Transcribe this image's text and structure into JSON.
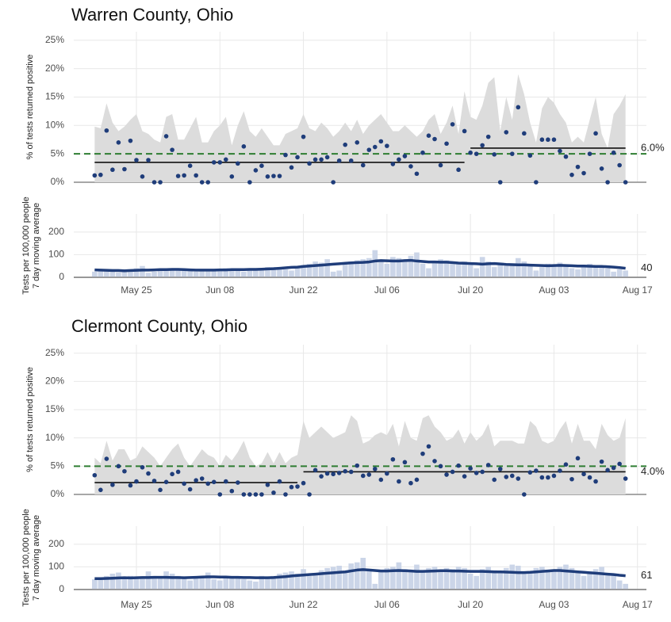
{
  "chart_data": [
    {
      "type": "scatter",
      "title": "Warren County, Ohio",
      "y_label": "% of tests returned positive",
      "x": [
        0,
        1,
        2,
        3,
        4,
        5,
        6,
        7,
        8,
        9,
        10,
        11,
        12,
        13,
        14,
        15,
        16,
        17,
        18,
        19,
        20,
        21,
        22,
        23,
        24,
        25,
        26,
        27,
        28,
        29,
        30,
        31,
        32,
        33,
        34,
        35,
        36,
        37,
        38,
        39,
        40,
        41,
        42,
        43,
        44,
        45,
        46,
        47,
        48,
        49,
        50,
        51,
        52,
        53,
        54,
        55,
        56,
        57,
        58,
        59,
        60,
        61,
        62,
        63,
        64,
        65,
        66,
        67,
        68,
        69,
        70,
        71,
        72,
        73,
        74,
        75,
        76,
        77,
        78,
        79,
        80,
        81,
        82,
        83,
        84,
        85,
        86,
        87,
        88,
        89
      ],
      "values": [
        1.2,
        1.3,
        9.1,
        2.2,
        7.0,
        2.3,
        7.3,
        3.9,
        1.0,
        3.9,
        0,
        0,
        8.1,
        5.7,
        1.1,
        1.2,
        2.9,
        1.2,
        0,
        0,
        3.5,
        3.5,
        4.0,
        1.0,
        3.3,
        6.3,
        0,
        2.1,
        2.9,
        1.0,
        1.1,
        1.1,
        4.8,
        2.6,
        4.4,
        8.0,
        3.3,
        4.0,
        4.0,
        4.4,
        0,
        3.8,
        6.6,
        3.8,
        7.0,
        3.0,
        5.7,
        6.2,
        7.2,
        6.4,
        3.2,
        4.0,
        4.6,
        2.8,
        1.5,
        5.2,
        8.2,
        7.6,
        3.0,
        6.8,
        10.2,
        2.2,
        9.0,
        5.2,
        5.0,
        6.5,
        8.0,
        4.9,
        0,
        8.8,
        5.0,
        13.2,
        8.6,
        4.7,
        0,
        7.5,
        7.5,
        7.5,
        5.5,
        4.5,
        1.3,
        2.7,
        1.6,
        5.0,
        8.6,
        2.4,
        0,
        5.2,
        3.0,
        0
      ],
      "band_upper": [
        9.8,
        9.5,
        13.9,
        10.5,
        9.0,
        9.8,
        11.0,
        12.0,
        9.0,
        8.5,
        7.5,
        7.0,
        11.5,
        12.0,
        7.5,
        7.5,
        9.5,
        11.5,
        7.0,
        7.0,
        9.0,
        10.0,
        11.5,
        6.5,
        10.0,
        12.5,
        9.0,
        8.0,
        9.5,
        8.0,
        6.5,
        6.5,
        8.5,
        9.0,
        9.5,
        12.0,
        9.5,
        9.0,
        10.5,
        9.5,
        8.0,
        9.0,
        10.5,
        9.0,
        11.0,
        8.5,
        10.0,
        11.0,
        12.0,
        10.5,
        9.0,
        9.0,
        10.0,
        9.0,
        8.0,
        9.0,
        11.0,
        12.0,
        8.5,
        10.5,
        13.5,
        8.5,
        16.0,
        11.5,
        11.0,
        13.5,
        17.5,
        18.5,
        9.0,
        15.0,
        11.0,
        19.0,
        15.5,
        10.5,
        7.0,
        13.0,
        15.0,
        14.0,
        12.0,
        10.5,
        7.0,
        8.0,
        7.0,
        11.0,
        15.0,
        8.5,
        6.0,
        12.0,
        13.5,
        15.5
      ],
      "segments": [
        {
          "x": [
            0,
            62
          ],
          "value": 3.5
        },
        {
          "x": [
            63,
            89
          ],
          "value": 6.0,
          "value_label": "6.0%"
        }
      ],
      "threshold": 5,
      "color": "#1f3d7a",
      "band_color": "#dcdcdc",
      "threshold_color": "#2e7d32",
      "xlim": [
        -3.5,
        92.5
      ],
      "ylim": [
        0,
        26.5
      ],
      "yticks": [
        {
          "value": 0,
          "label": "0%"
        },
        {
          "value": 5,
          "label": "5%"
        },
        {
          "value": 10,
          "label": "10%"
        },
        {
          "value": 15,
          "label": "15%"
        },
        {
          "value": 20,
          "label": "20%"
        },
        {
          "value": 25,
          "label": "25%"
        }
      ]
    },
    {
      "type": "bar",
      "y_label": [
        "Tests per 100,000 people",
        "7 day moving average"
      ],
      "x": [
        0,
        1,
        2,
        3,
        4,
        5,
        6,
        7,
        8,
        9,
        10,
        11,
        12,
        13,
        14,
        15,
        16,
        17,
        18,
        19,
        20,
        21,
        22,
        23,
        24,
        25,
        26,
        27,
        28,
        29,
        30,
        31,
        32,
        33,
        34,
        35,
        36,
        37,
        38,
        39,
        40,
        41,
        42,
        43,
        44,
        45,
        46,
        47,
        48,
        49,
        50,
        51,
        52,
        53,
        54,
        55,
        56,
        57,
        58,
        59,
        60,
        61,
        62,
        63,
        64,
        65,
        66,
        67,
        68,
        69,
        70,
        71,
        72,
        73,
        74,
        75,
        76,
        77,
        78,
        79,
        80,
        81,
        82,
        83,
        84,
        85,
        86,
        87,
        88,
        89
      ],
      "values": [
        25,
        30,
        35,
        28,
        22,
        30,
        35,
        40,
        50,
        20,
        25,
        30,
        35,
        38,
        40,
        30,
        28,
        25,
        30,
        35,
        30,
        35,
        40,
        35,
        30,
        25,
        30,
        35,
        40,
        45,
        45,
        40,
        35,
        30,
        45,
        55,
        60,
        70,
        65,
        80,
        25,
        30,
        60,
        70,
        75,
        80,
        85,
        120,
        70,
        60,
        90,
        85,
        70,
        95,
        110,
        60,
        40,
        70,
        80,
        75,
        60,
        65,
        70,
        55,
        40,
        90,
        70,
        45,
        60,
        50,
        60,
        85,
        70,
        50,
        30,
        45,
        60,
        50,
        65,
        55,
        40,
        35,
        55,
        60,
        50,
        45,
        40,
        25,
        35,
        30
      ],
      "moving_average": [
        33,
        32,
        31,
        30,
        30,
        29,
        30,
        31,
        32,
        32,
        33,
        34,
        34,
        35,
        35,
        34,
        33,
        32,
        32,
        32,
        32,
        33,
        33,
        34,
        34,
        34,
        35,
        35,
        36,
        37,
        38,
        40,
        42,
        44,
        45,
        48,
        50,
        52,
        54,
        56,
        58,
        60,
        62,
        64,
        65,
        66,
        68,
        72,
        74,
        73,
        72,
        72,
        74,
        75,
        72,
        70,
        68,
        68,
        67,
        67,
        65,
        63,
        62,
        61,
        60,
        58,
        60,
        61,
        59,
        57,
        56,
        55,
        55,
        54,
        53,
        52,
        51,
        52,
        53,
        52,
        51,
        50,
        50,
        49,
        48,
        48,
        47,
        45,
        43,
        40
      ],
      "color": "#cbd5e8",
      "line_color": "#1f3d7a",
      "xlim": [
        -3.5,
        92.5
      ],
      "ylim": [
        0,
        280
      ],
      "yticks": [
        0,
        100,
        200
      ],
      "xticks": [
        {
          "value": 7,
          "label": "May 25"
        },
        {
          "value": 21,
          "label": "Jun 08"
        },
        {
          "value": 35,
          "label": "Jun 22"
        },
        {
          "value": 49,
          "label": "Jul 06"
        },
        {
          "value": 63,
          "label": "Jul 20"
        },
        {
          "value": 77,
          "label": "Aug 03"
        },
        {
          "value": 91,
          "label": "Aug 17"
        }
      ]
    },
    {
      "type": "scatter",
      "title": "Clermont County, Ohio",
      "y_label": "% of tests returned positive",
      "x": [
        0,
        1,
        2,
        3,
        4,
        5,
        6,
        7,
        8,
        9,
        10,
        11,
        12,
        13,
        14,
        15,
        16,
        17,
        18,
        19,
        20,
        21,
        22,
        23,
        24,
        25,
        26,
        27,
        28,
        29,
        30,
        31,
        32,
        33,
        34,
        35,
        36,
        37,
        38,
        39,
        40,
        41,
        42,
        43,
        44,
        45,
        46,
        47,
        48,
        49,
        50,
        51,
        52,
        53,
        54,
        55,
        56,
        57,
        58,
        59,
        60,
        61,
        62,
        63,
        64,
        65,
        66,
        67,
        68,
        69,
        70,
        71,
        72,
        73,
        74,
        75,
        76,
        77,
        78,
        79,
        80,
        81,
        82,
        83,
        84,
        85,
        86,
        87,
        88,
        89
      ],
      "values": [
        3.4,
        0.8,
        6.3,
        1.7,
        5.0,
        4.1,
        1.6,
        2.3,
        4.8,
        3.7,
        2.4,
        0.8,
        2.2,
        3.6,
        4.0,
        1.9,
        0.9,
        2.5,
        2.8,
        1.9,
        2.2,
        0,
        2.3,
        0.6,
        2.1,
        0,
        0,
        0,
        0,
        1.7,
        0.3,
        2.3,
        0,
        1.3,
        1.4,
        2.0,
        0,
        4.3,
        3.2,
        3.7,
        3.6,
        3.8,
        4.1,
        4.0,
        5.1,
        3.3,
        3.5,
        4.5,
        2.6,
        3.7,
        6.2,
        2.3,
        5.7,
        2.0,
        2.6,
        7.2,
        8.5,
        5.9,
        5.0,
        3.5,
        4.0,
        5.1,
        3.2,
        4.6,
        3.8,
        4.0,
        5.2,
        2.6,
        4.5,
        3.1,
        3.3,
        2.8,
        0,
        3.9,
        4.2,
        3.0,
        3.0,
        3.3,
        4.2,
        5.3,
        2.7,
        6.4,
        3.6,
        3.0,
        2.3,
        5.8,
        4.3,
        4.7,
        5.4,
        2.8
      ],
      "band_upper": [
        6.5,
        5.5,
        9.5,
        6.0,
        8.0,
        8.0,
        6.0,
        6.5,
        8.5,
        7.5,
        6.5,
        5.0,
        6.5,
        8.0,
        9.0,
        6.5,
        5.0,
        6.5,
        8.0,
        7.0,
        6.5,
        5.0,
        7.0,
        6.0,
        7.5,
        9.5,
        6.5,
        5.0,
        5.5,
        7.5,
        5.5,
        7.5,
        5.5,
        6.5,
        7.0,
        13.0,
        10.0,
        11.0,
        12.0,
        11.0,
        10.0,
        10.5,
        11.0,
        14.0,
        13.0,
        9.0,
        9.5,
        10.5,
        11.0,
        10.5,
        12.5,
        8.5,
        13.0,
        10.0,
        9.5,
        13.5,
        14.0,
        12.0,
        11.0,
        9.5,
        10.0,
        11.5,
        9.0,
        11.0,
        9.5,
        10.5,
        12.5,
        8.5,
        9.5,
        9.5,
        9.5,
        9.0,
        9.0,
        13.0,
        12.0,
        9.5,
        9.0,
        9.5,
        11.5,
        13.0,
        9.0,
        12.5,
        9.5,
        9.5,
        8.0,
        12.5,
        10.5,
        9.5,
        10.0,
        13.5
      ],
      "segments": [
        {
          "x": [
            0,
            34
          ],
          "value": 2.1
        },
        {
          "x": [
            35,
            89
          ],
          "value": 4.0,
          "value_label": "4.0%"
        }
      ],
      "threshold": 5,
      "color": "#1f3d7a",
      "band_color": "#dcdcdc",
      "threshold_color": "#2e7d32",
      "xlim": [
        -3.5,
        92.5
      ],
      "ylim": [
        0,
        26.5
      ],
      "yticks": [
        {
          "value": 0,
          "label": "0%"
        },
        {
          "value": 5,
          "label": "5%"
        },
        {
          "value": 10,
          "label": "10%"
        },
        {
          "value": 15,
          "label": "15%"
        },
        {
          "value": 20,
          "label": "20%"
        },
        {
          "value": 25,
          "label": "25%"
        }
      ]
    },
    {
      "type": "bar",
      "y_label": [
        "Tests per 100,000 people",
        "7 day moving average"
      ],
      "x": [
        0,
        1,
        2,
        3,
        4,
        5,
        6,
        7,
        8,
        9,
        10,
        11,
        12,
        13,
        14,
        15,
        16,
        17,
        18,
        19,
        20,
        21,
        22,
        23,
        24,
        25,
        26,
        27,
        28,
        29,
        30,
        31,
        32,
        33,
        34,
        35,
        36,
        37,
        38,
        39,
        40,
        41,
        42,
        43,
        44,
        45,
        46,
        47,
        48,
        49,
        50,
        51,
        52,
        53,
        54,
        55,
        56,
        57,
        58,
        59,
        60,
        61,
        62,
        63,
        64,
        65,
        66,
        67,
        68,
        69,
        70,
        71,
        72,
        73,
        74,
        75,
        76,
        77,
        78,
        79,
        80,
        81,
        82,
        83,
        84,
        85,
        86,
        87,
        88,
        89
      ],
      "values": [
        45,
        50,
        60,
        70,
        75,
        50,
        60,
        55,
        50,
        80,
        60,
        50,
        80,
        70,
        60,
        50,
        40,
        50,
        60,
        75,
        45,
        40,
        60,
        55,
        50,
        45,
        40,
        35,
        60,
        55,
        60,
        70,
        75,
        80,
        70,
        90,
        60,
        70,
        85,
        95,
        100,
        105,
        80,
        115,
        120,
        140,
        90,
        25,
        80,
        95,
        100,
        120,
        90,
        80,
        110,
        85,
        95,
        100,
        85,
        95,
        90,
        100,
        95,
        70,
        60,
        90,
        100,
        85,
        80,
        95,
        110,
        105,
        70,
        75,
        95,
        100,
        80,
        85,
        100,
        110,
        95,
        75,
        60,
        80,
        90,
        100,
        70,
        65,
        40,
        25
      ],
      "moving_average": [
        48,
        48,
        49,
        50,
        51,
        52,
        51,
        52,
        53,
        53,
        54,
        54,
        54,
        53,
        53,
        52,
        53,
        54,
        55,
        56,
        56,
        55,
        55,
        54,
        54,
        53,
        53,
        52,
        52,
        52,
        53,
        55,
        57,
        60,
        62,
        64,
        66,
        68,
        70,
        72,
        74,
        76,
        78,
        82,
        86,
        88,
        86,
        84,
        82,
        82,
        83,
        84,
        83,
        82,
        80,
        80,
        81,
        82,
        83,
        83,
        82,
        82,
        81,
        80,
        80,
        80,
        79,
        78,
        78,
        77,
        76,
        75,
        75,
        76,
        78,
        80,
        82,
        84,
        84,
        82,
        80,
        78,
        76,
        74,
        72,
        70,
        68,
        66,
        63,
        61
      ],
      "color": "#cbd5e8",
      "line_color": "#1f3d7a",
      "xlim": [
        -3.5,
        92.5
      ],
      "ylim": [
        0,
        280
      ],
      "yticks": [
        0,
        100,
        200
      ],
      "xticks": [
        {
          "value": 7,
          "label": "May 25"
        },
        {
          "value": 21,
          "label": "Jun 08"
        },
        {
          "value": 35,
          "label": "Jun 22"
        },
        {
          "value": 49,
          "label": "Jul 06"
        },
        {
          "value": 63,
          "label": "Jul 20"
        },
        {
          "value": 77,
          "label": "Aug 03"
        },
        {
          "value": 91,
          "label": "Aug 17"
        }
      ]
    }
  ]
}
